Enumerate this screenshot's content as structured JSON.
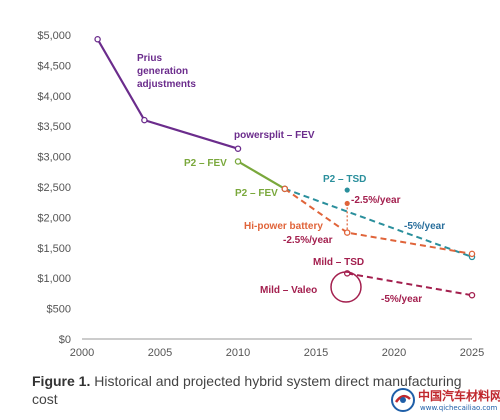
{
  "chart_data": {
    "type": "line",
    "xlim": [
      2000,
      2025
    ],
    "ylim": [
      0,
      5000
    ],
    "x_ticks": [
      "2000",
      "2005",
      "2010",
      "2015",
      "2020",
      "2025"
    ],
    "y_ticks": [
      "$0",
      "$500",
      "$1,000",
      "$1,500",
      "$2,000",
      "$2,500",
      "$3,000",
      "$3,500",
      "$4,000",
      "$4,500",
      "$5,000"
    ],
    "grid": false,
    "series": [
      {
        "id": "prius",
        "color": "#6b2c8c",
        "dashed": false,
        "points": [
          [
            2001,
            4930
          ],
          [
            2004,
            3600
          ],
          [
            2010,
            3130
          ]
        ]
      },
      {
        "id": "p2fev",
        "color": "#7aa83c",
        "dashed": false,
        "points": [
          [
            2010,
            2920
          ],
          [
            2013,
            2470
          ]
        ]
      },
      {
        "id": "p2tsd",
        "color": "#2a8f9c",
        "dashed": true,
        "points": [
          [
            2013,
            2470
          ],
          [
            2025,
            1350
          ]
        ]
      },
      {
        "id": "hipower",
        "color": "#e0643a",
        "dashed": true,
        "points": [
          [
            2013,
            2470
          ],
          [
            2017,
            1750
          ],
          [
            2025,
            1400
          ]
        ]
      },
      {
        "id": "mild",
        "color": "#a31f4e",
        "dashed": true,
        "points": [
          [
            2017,
            1080
          ],
          [
            2025,
            720
          ]
        ]
      }
    ],
    "extra_points": [
      {
        "color": "#2a8f9c",
        "x": 2017,
        "y": 2450
      },
      {
        "color": "#e0643a",
        "x": 2017,
        "y": 2230
      }
    ],
    "annotations": {
      "prius": "Prius generation adjustments",
      "powersplit": "powersplit – FEV",
      "p2fev_a": "P2 – FEV",
      "p2fev_b": "P2 – FEV",
      "p2tsd": "P2 – TSD",
      "rate_orange": "-2.5%/year",
      "rate_teal": "-5%/year",
      "hipower": "Hi-power battery",
      "rate_hipower": "-2.5%/year",
      "mildtsd": "Mild – TSD",
      "mildvaleo": "Mild – Valeo",
      "rate_mild": "-5%/year"
    }
  },
  "caption": {
    "lead": "Figure 1.",
    "text": " Historical and projected hybrid system direct manufacturing cost"
  },
  "watermark": {
    "main": "中国汽车材料网",
    "url": "www.qichecailiao.com"
  }
}
